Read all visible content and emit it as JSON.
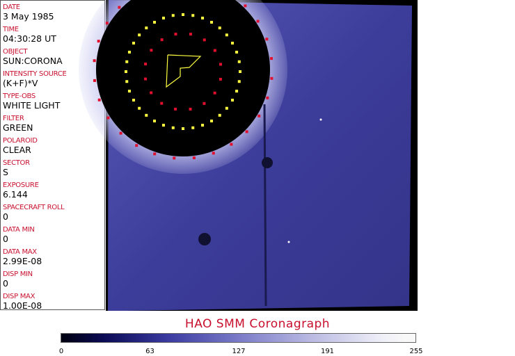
{
  "fields": [
    {
      "label": "DATE",
      "value": "3 May 1985"
    },
    {
      "label": "TIME",
      "value": "04:30:28 UT"
    },
    {
      "label": "OBJECT",
      "value": "SUN:CORONA"
    },
    {
      "label": "INTENSITY SOURCE",
      "value": "(K+F)*V"
    },
    {
      "label": "TYPE-OBS",
      "value": "WHITE LIGHT"
    },
    {
      "label": "FILTER",
      "value": "GREEN"
    },
    {
      "label": "POLAROID",
      "value": "CLEAR"
    },
    {
      "label": "SECTOR",
      "value": "S"
    },
    {
      "label": "EXPOSURE",
      "value": "6.144"
    },
    {
      "label": "SPACECRAFT ROLL",
      "value": "0"
    },
    {
      "label": "DATA MIN",
      "value": "0"
    },
    {
      "label": "DATA MAX",
      "value": "2.99E-08"
    },
    {
      "label": "DISP MIN",
      "value": "0"
    },
    {
      "label": "DISP MAX",
      "value": "1.00E-08"
    }
  ],
  "title": "HAO   SMM  Coronagraph",
  "colorbar": {
    "ticks": [
      "0",
      "63",
      "127",
      "191",
      "255"
    ],
    "colors": {
      "dark": "#000010",
      "mid": "#3a3aa0",
      "light": "#f8f8f8"
    }
  },
  "colors": {
    "label": "#c8102e",
    "overlay_yellow": "#ffff40",
    "overlay_red": "#e0102e"
  }
}
